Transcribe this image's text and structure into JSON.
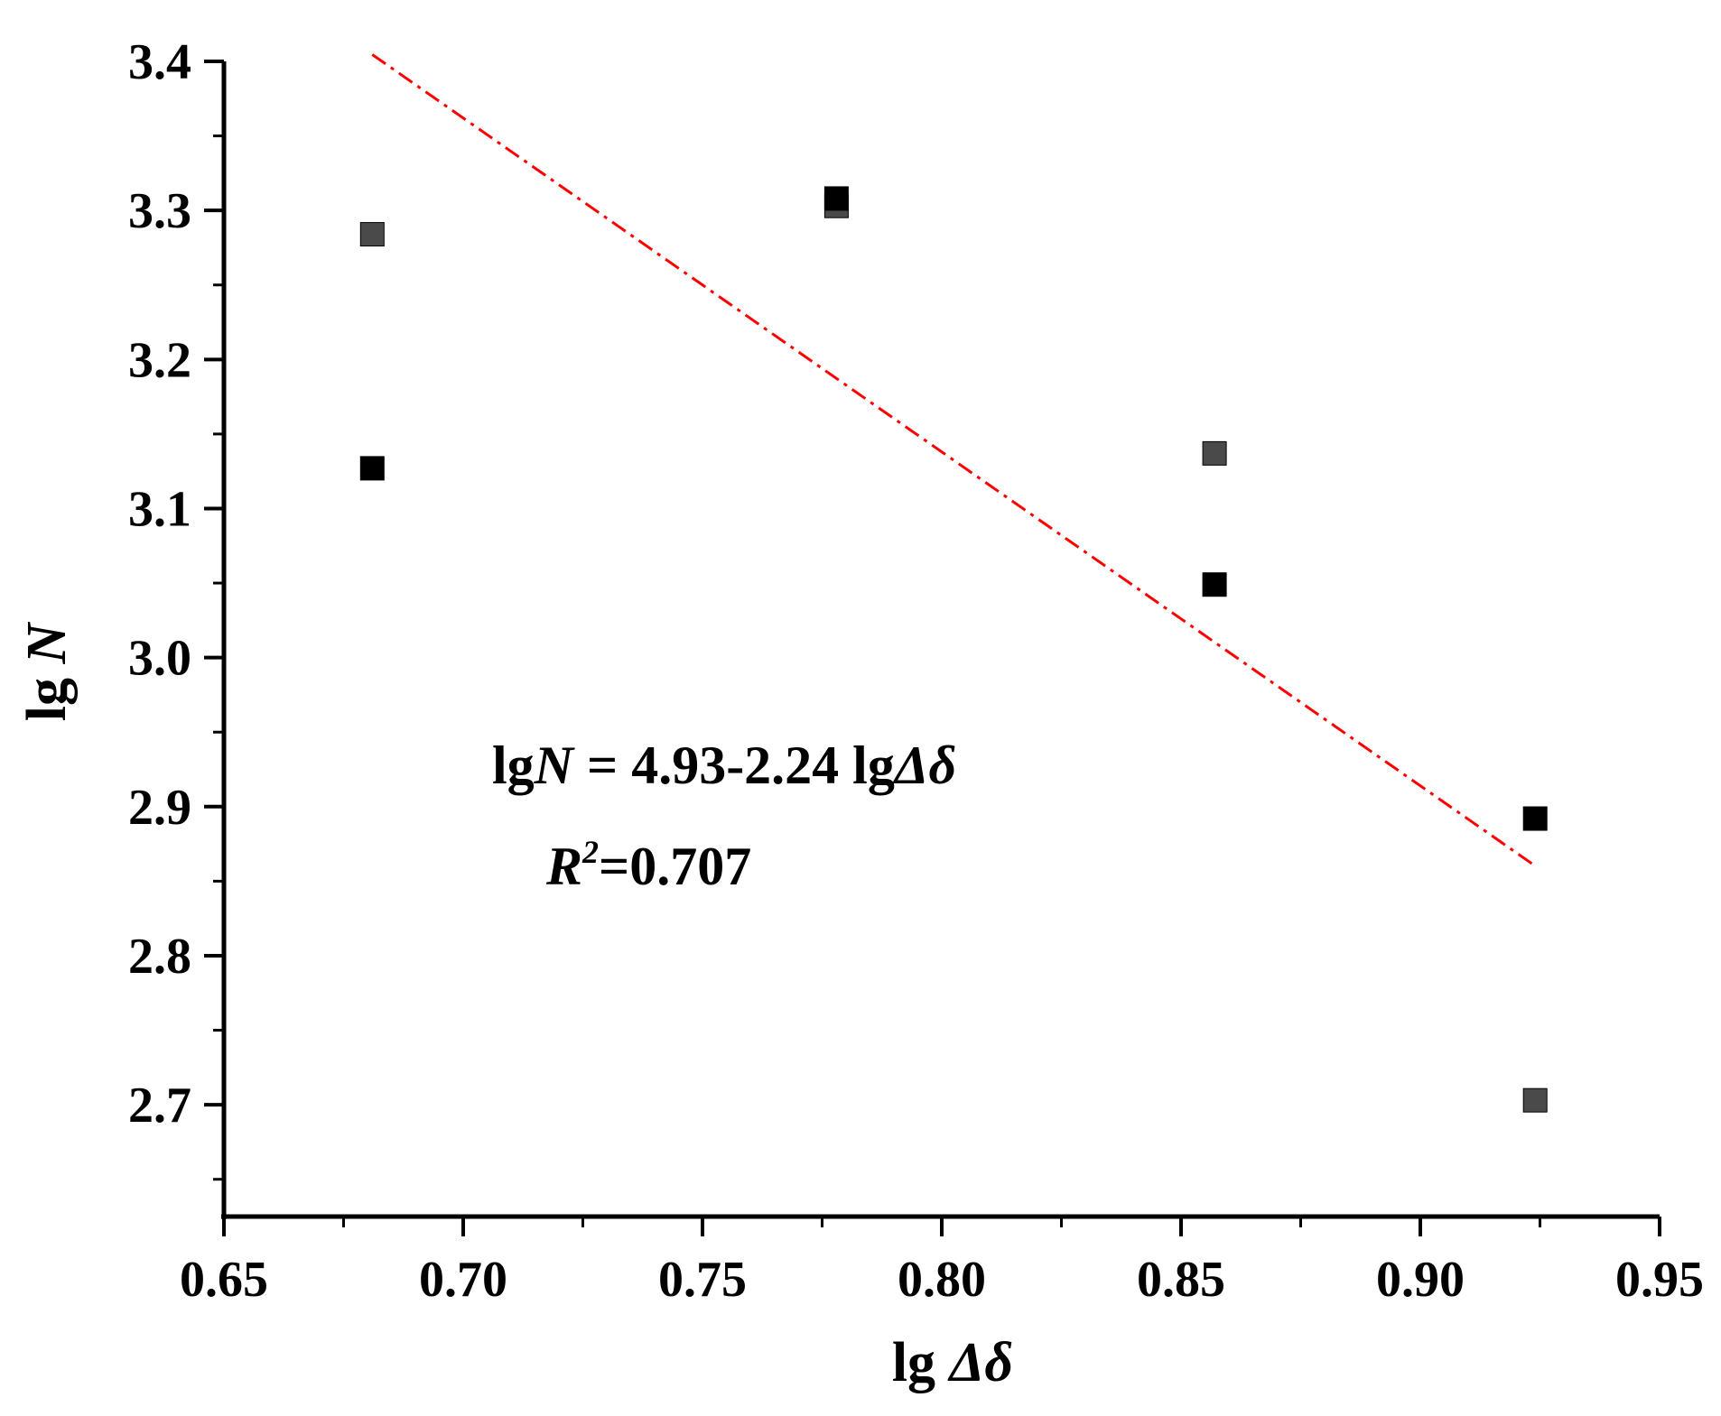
{
  "chart_data": {
    "type": "scatter",
    "x_label": {
      "prefix": "lg ",
      "symbol": "Δδ"
    },
    "y_label": {
      "prefix": "lg ",
      "symbol": "N"
    },
    "xlim": [
      0.65,
      0.95
    ],
    "ylim": [
      2.625,
      3.4
    ],
    "x_ticks": [
      0.65,
      0.7,
      0.75,
      0.8,
      0.85,
      0.9,
      0.95
    ],
    "x_tick_labels": [
      "0.65",
      "0.70",
      "0.75",
      "0.80",
      "0.85",
      "0.90",
      "0.95"
    ],
    "y_ticks": [
      2.7,
      2.8,
      2.9,
      3.0,
      3.1,
      3.2,
      3.3,
      3.4
    ],
    "y_tick_labels": [
      "2.7",
      "2.8",
      "2.9",
      "3.0",
      "3.1",
      "3.2",
      "3.3",
      "3.4"
    ],
    "grid": false,
    "series": [
      {
        "marker": "square",
        "color": "#4a4a4a",
        "points": [
          {
            "x": 0.681,
            "y": 3.284
          },
          {
            "x": 0.778,
            "y": 3.303
          },
          {
            "x": 0.857,
            "y": 3.137
          },
          {
            "x": 0.924,
            "y": 2.703
          }
        ]
      },
      {
        "marker": "square",
        "color": "#000000",
        "points": [
          {
            "x": 0.681,
            "y": 3.127
          },
          {
            "x": 0.778,
            "y": 3.308
          },
          {
            "x": 0.857,
            "y": 3.049
          },
          {
            "x": 0.924,
            "y": 2.892
          }
        ]
      }
    ],
    "fit_line": {
      "style": "dash-dot",
      "color": "#ff0000",
      "intercept": 4.93,
      "slope": -2.24,
      "x_range": [
        0.681,
        0.924
      ]
    },
    "annotations": {
      "equation": {
        "part1": "lg",
        "part2": "N",
        "part3": " = 4.93-2.24 lg",
        "part4": "Δδ"
      },
      "r_squared": {
        "symbol": "R",
        "exponent": "2",
        "value": "=0.707"
      }
    }
  }
}
